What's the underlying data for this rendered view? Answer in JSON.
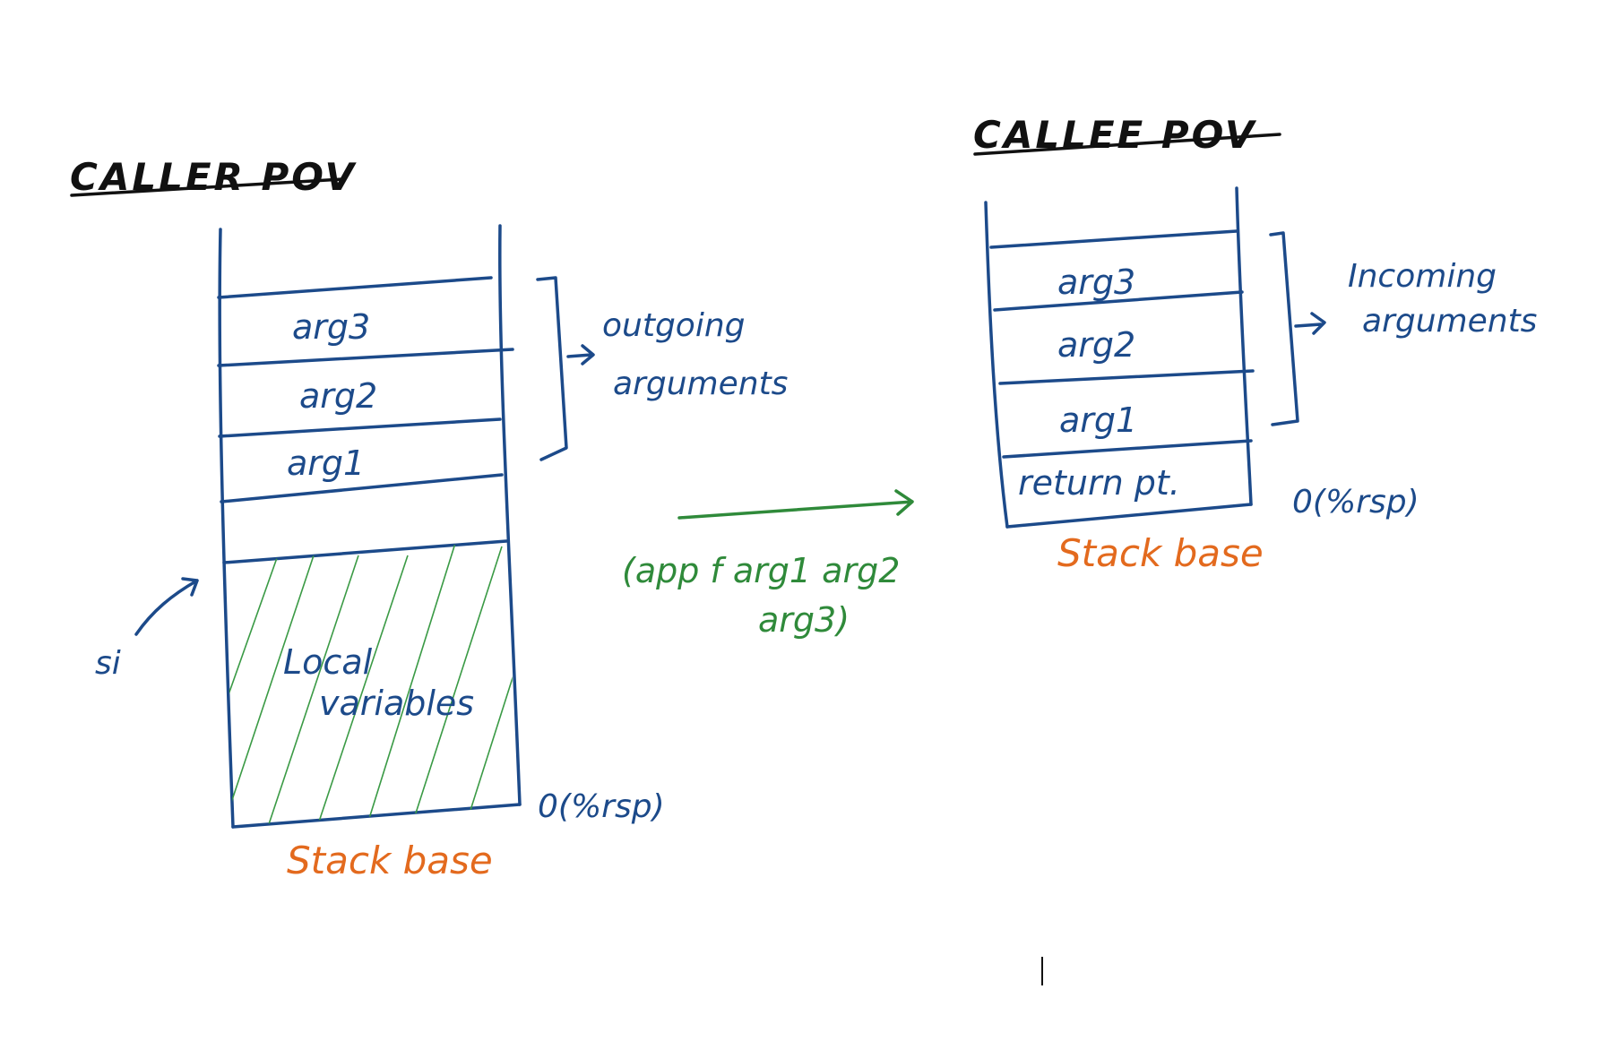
{
  "caller": {
    "title": "CALLER POV",
    "cells": {
      "arg3": "arg3",
      "arg2": "arg2",
      "arg1": "arg1"
    },
    "local_variables": [
      "Local",
      "variables"
    ],
    "bracket_label": [
      "outgoing",
      "arguments"
    ],
    "pointer_label": "si",
    "rsp_label": "0(%rsp)",
    "base_label": "Stack base"
  },
  "callee": {
    "title": "CALLEE POV",
    "cells": {
      "arg3": "arg3",
      "arg2": "arg2",
      "arg1": "arg1",
      "return": "return pt."
    },
    "bracket_label": [
      "Incoming",
      "arguments"
    ],
    "rsp_label": "0(%rsp)",
    "base_label": "Stack base"
  },
  "transition": {
    "label": [
      "(app f arg1 arg2",
      "arg3)"
    ]
  },
  "colors": {
    "ink_blue": "#1c4a8a",
    "ink_green": "#2f8a3a",
    "ink_orange": "#e36a1e",
    "ink_black": "#111111"
  }
}
